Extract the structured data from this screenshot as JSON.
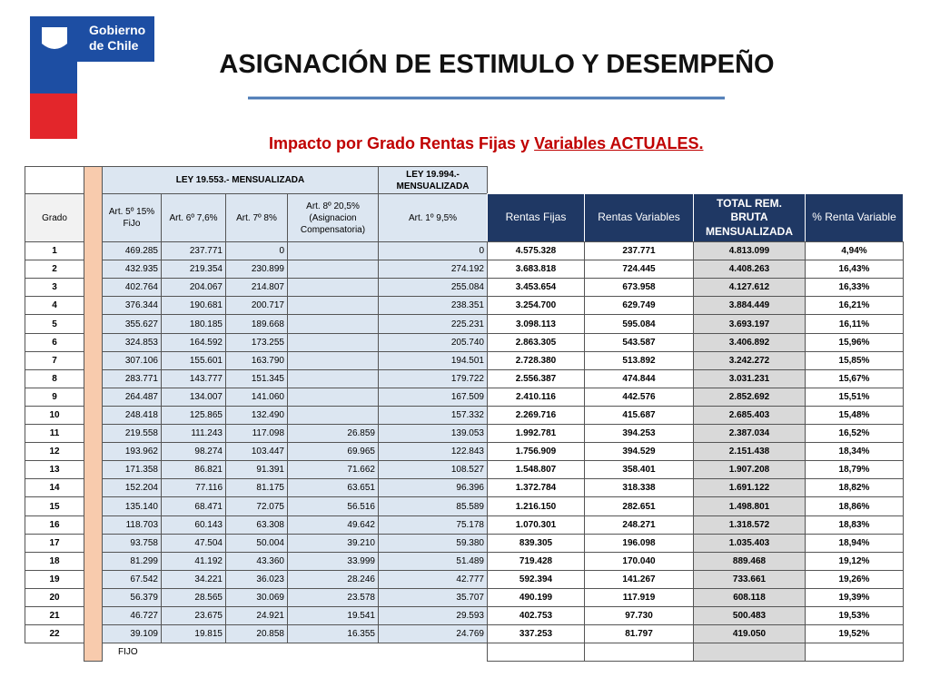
{
  "logo": {
    "line1": "Gobierno",
    "line2": "de Chile"
  },
  "title": "ASIGNACIÓN DE ESTIMULO Y DESEMPEÑO",
  "subtitle": {
    "plain": "Impacto por Grado Rentas Fijas y",
    "underlined": "Variables ACTUALES."
  },
  "table": {
    "groups": [
      "LEY 19.553.- MENSUALIZADA",
      "LEY 19.994.- MENSUALIZADA"
    ],
    "columns": [
      "Grado",
      "Art. 5º 15% FiJo",
      "Art. 6º 7,6%",
      "Art. 7º 8%",
      "Art. 8º 20,5% (Asignacion Compensatoria)",
      "Art. 1º 9,5%",
      "Rentas Fijas",
      "Rentas Variables",
      "TOTAL REM. BRUTA MENSUALIZADA",
      "% Renta Variable"
    ],
    "rows": [
      [
        "1",
        "469.285",
        "237.771",
        "0",
        null,
        "0",
        "4.575.328",
        "237.771",
        "4.813.099",
        "4,94%"
      ],
      [
        "2",
        "432.935",
        "219.354",
        "230.899",
        null,
        "274.192",
        "3.683.818",
        "724.445",
        "4.408.263",
        "16,43%"
      ],
      [
        "3",
        "402.764",
        "204.067",
        "214.807",
        null,
        "255.084",
        "3.453.654",
        "673.958",
        "4.127.612",
        "16,33%"
      ],
      [
        "4",
        "376.344",
        "190.681",
        "200.717",
        null,
        "238.351",
        "3.254.700",
        "629.749",
        "3.884.449",
        "16,21%"
      ],
      [
        "5",
        "355.627",
        "180.185",
        "189.668",
        null,
        "225.231",
        "3.098.113",
        "595.084",
        "3.693.197",
        "16,11%"
      ],
      [
        "6",
        "324.853",
        "164.592",
        "173.255",
        null,
        "205.740",
        "2.863.305",
        "543.587",
        "3.406.892",
        "15,96%"
      ],
      [
        "7",
        "307.106",
        "155.601",
        "163.790",
        null,
        "194.501",
        "2.728.380",
        "513.892",
        "3.242.272",
        "15,85%"
      ],
      [
        "8",
        "283.771",
        "143.777",
        "151.345",
        null,
        "179.722",
        "2.556.387",
        "474.844",
        "3.031.231",
        "15,67%"
      ],
      [
        "9",
        "264.487",
        "134.007",
        "141.060",
        null,
        "167.509",
        "2.410.116",
        "442.576",
        "2.852.692",
        "15,51%"
      ],
      [
        "10",
        "248.418",
        "125.865",
        "132.490",
        null,
        "157.332",
        "2.269.716",
        "415.687",
        "2.685.403",
        "15,48%"
      ],
      [
        "11",
        "219.558",
        "111.243",
        "117.098",
        "26.859",
        "139.053",
        "1.992.781",
        "394.253",
        "2.387.034",
        "16,52%"
      ],
      [
        "12",
        "193.962",
        "98.274",
        "103.447",
        "69.965",
        "122.843",
        "1.756.909",
        "394.529",
        "2.151.438",
        "18,34%"
      ],
      [
        "13",
        "171.358",
        "86.821",
        "91.391",
        "71.662",
        "108.527",
        "1.548.807",
        "358.401",
        "1.907.208",
        "18,79%"
      ],
      [
        "14",
        "152.204",
        "77.116",
        "81.175",
        "63.651",
        "96.396",
        "1.372.784",
        "318.338",
        "1.691.122",
        "18,82%"
      ],
      [
        "15",
        "135.140",
        "68.471",
        "72.075",
        "56.516",
        "85.589",
        "1.216.150",
        "282.651",
        "1.498.801",
        "18,86%"
      ],
      [
        "16",
        "118.703",
        "60.143",
        "63.308",
        "49.642",
        "75.178",
        "1.070.301",
        "248.271",
        "1.318.572",
        "18,83%"
      ],
      [
        "17",
        "93.758",
        "47.504",
        "50.004",
        "39.210",
        "59.380",
        "839.305",
        "196.098",
        "1.035.403",
        "18,94%"
      ],
      [
        "18",
        "81.299",
        "41.192",
        "43.360",
        "33.999",
        "51.489",
        "719.428",
        "170.040",
        "889.468",
        "19,12%"
      ],
      [
        "19",
        "67.542",
        "34.221",
        "36.023",
        "28.246",
        "42.777",
        "592.394",
        "141.267",
        "733.661",
        "19,26%"
      ],
      [
        "20",
        "56.379",
        "28.565",
        "30.069",
        "23.578",
        "35.707",
        "490.199",
        "117.919",
        "608.118",
        "19,39%"
      ],
      [
        "21",
        "46.727",
        "23.675",
        "24.921",
        "19.541",
        "29.593",
        "402.753",
        "97.730",
        "500.483",
        "19,53%"
      ],
      [
        "22",
        "39.109",
        "19.815",
        "20.858",
        "16.355",
        "24.769",
        "337.253",
        "81.797",
        "419.050",
        "19,52%"
      ]
    ],
    "footer": "FIJO"
  }
}
